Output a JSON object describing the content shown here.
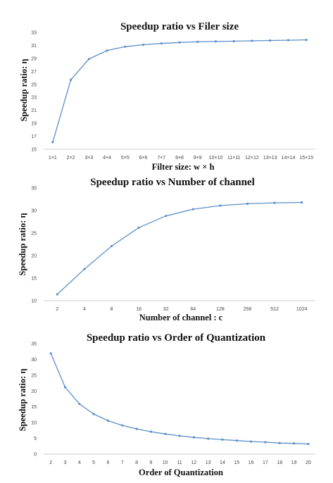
{
  "chart_data": [
    {
      "type": "line",
      "title": "Speedup ratio vs Filer size",
      "xlabel": "Filter size: w × h",
      "ylabel": "Speedup ratio: η",
      "categories": [
        "1×1",
        "2×2",
        "3×3",
        "4×4",
        "5×5",
        "6×6",
        "7×7",
        "8×8",
        "9×9",
        "10×10",
        "11×11",
        "12×12",
        "13×13",
        "14×14",
        "15×15"
      ],
      "yticks": [
        "15",
        "17",
        "19",
        "21",
        "23",
        "25",
        "27",
        "29",
        "31",
        "33"
      ],
      "ylim": [
        15,
        33
      ],
      "grid": false,
      "series": [
        {
          "values": [
            16.1,
            25.7,
            28.9,
            30.2,
            30.8,
            31.1,
            31.3,
            31.45,
            31.55,
            31.6,
            31.65,
            31.7,
            31.75,
            31.8,
            31.85
          ]
        }
      ],
      "color": "#5b8fc9"
    },
    {
      "type": "line",
      "title": "Speedup ratio vs Number of channel",
      "xlabel": "Number of channel : c",
      "ylabel": "Speedup ratio: η",
      "categories": [
        "2",
        "4",
        "8",
        "16",
        "32",
        "64",
        "128",
        "256",
        "512",
        "1024"
      ],
      "yticks": [
        "10",
        "15",
        "20",
        "25",
        "30",
        "35"
      ],
      "ylim": [
        10,
        35
      ],
      "grid": false,
      "series": [
        {
          "values": [
            11.4,
            17.0,
            22.1,
            26.2,
            28.8,
            30.3,
            31.1,
            31.5,
            31.7,
            31.8
          ]
        }
      ],
      "color": "#5b8fc9"
    },
    {
      "type": "line",
      "title": "Speedup ratio vs Order of Quantization",
      "xlabel": "Order of Quantization",
      "ylabel": "Speedup ratio: η",
      "categories": [
        "2",
        "3",
        "4",
        "5",
        "6",
        "7",
        "8",
        "9",
        "10",
        "11",
        "12",
        "13",
        "14",
        "15",
        "16",
        "17",
        "18",
        "19",
        "20"
      ],
      "yticks": [
        "0",
        "5",
        "10",
        "15",
        "20",
        "25",
        "30",
        "35"
      ],
      "ylim": [
        0,
        35
      ],
      "grid": false,
      "series": [
        {
          "values": [
            31.9,
            21.2,
            15.9,
            12.7,
            10.6,
            9.1,
            8.0,
            7.1,
            6.4,
            5.8,
            5.3,
            4.9,
            4.6,
            4.3,
            4.0,
            3.8,
            3.5,
            3.4,
            3.2
          ]
        }
      ],
      "color": "#5b8fc9"
    }
  ]
}
